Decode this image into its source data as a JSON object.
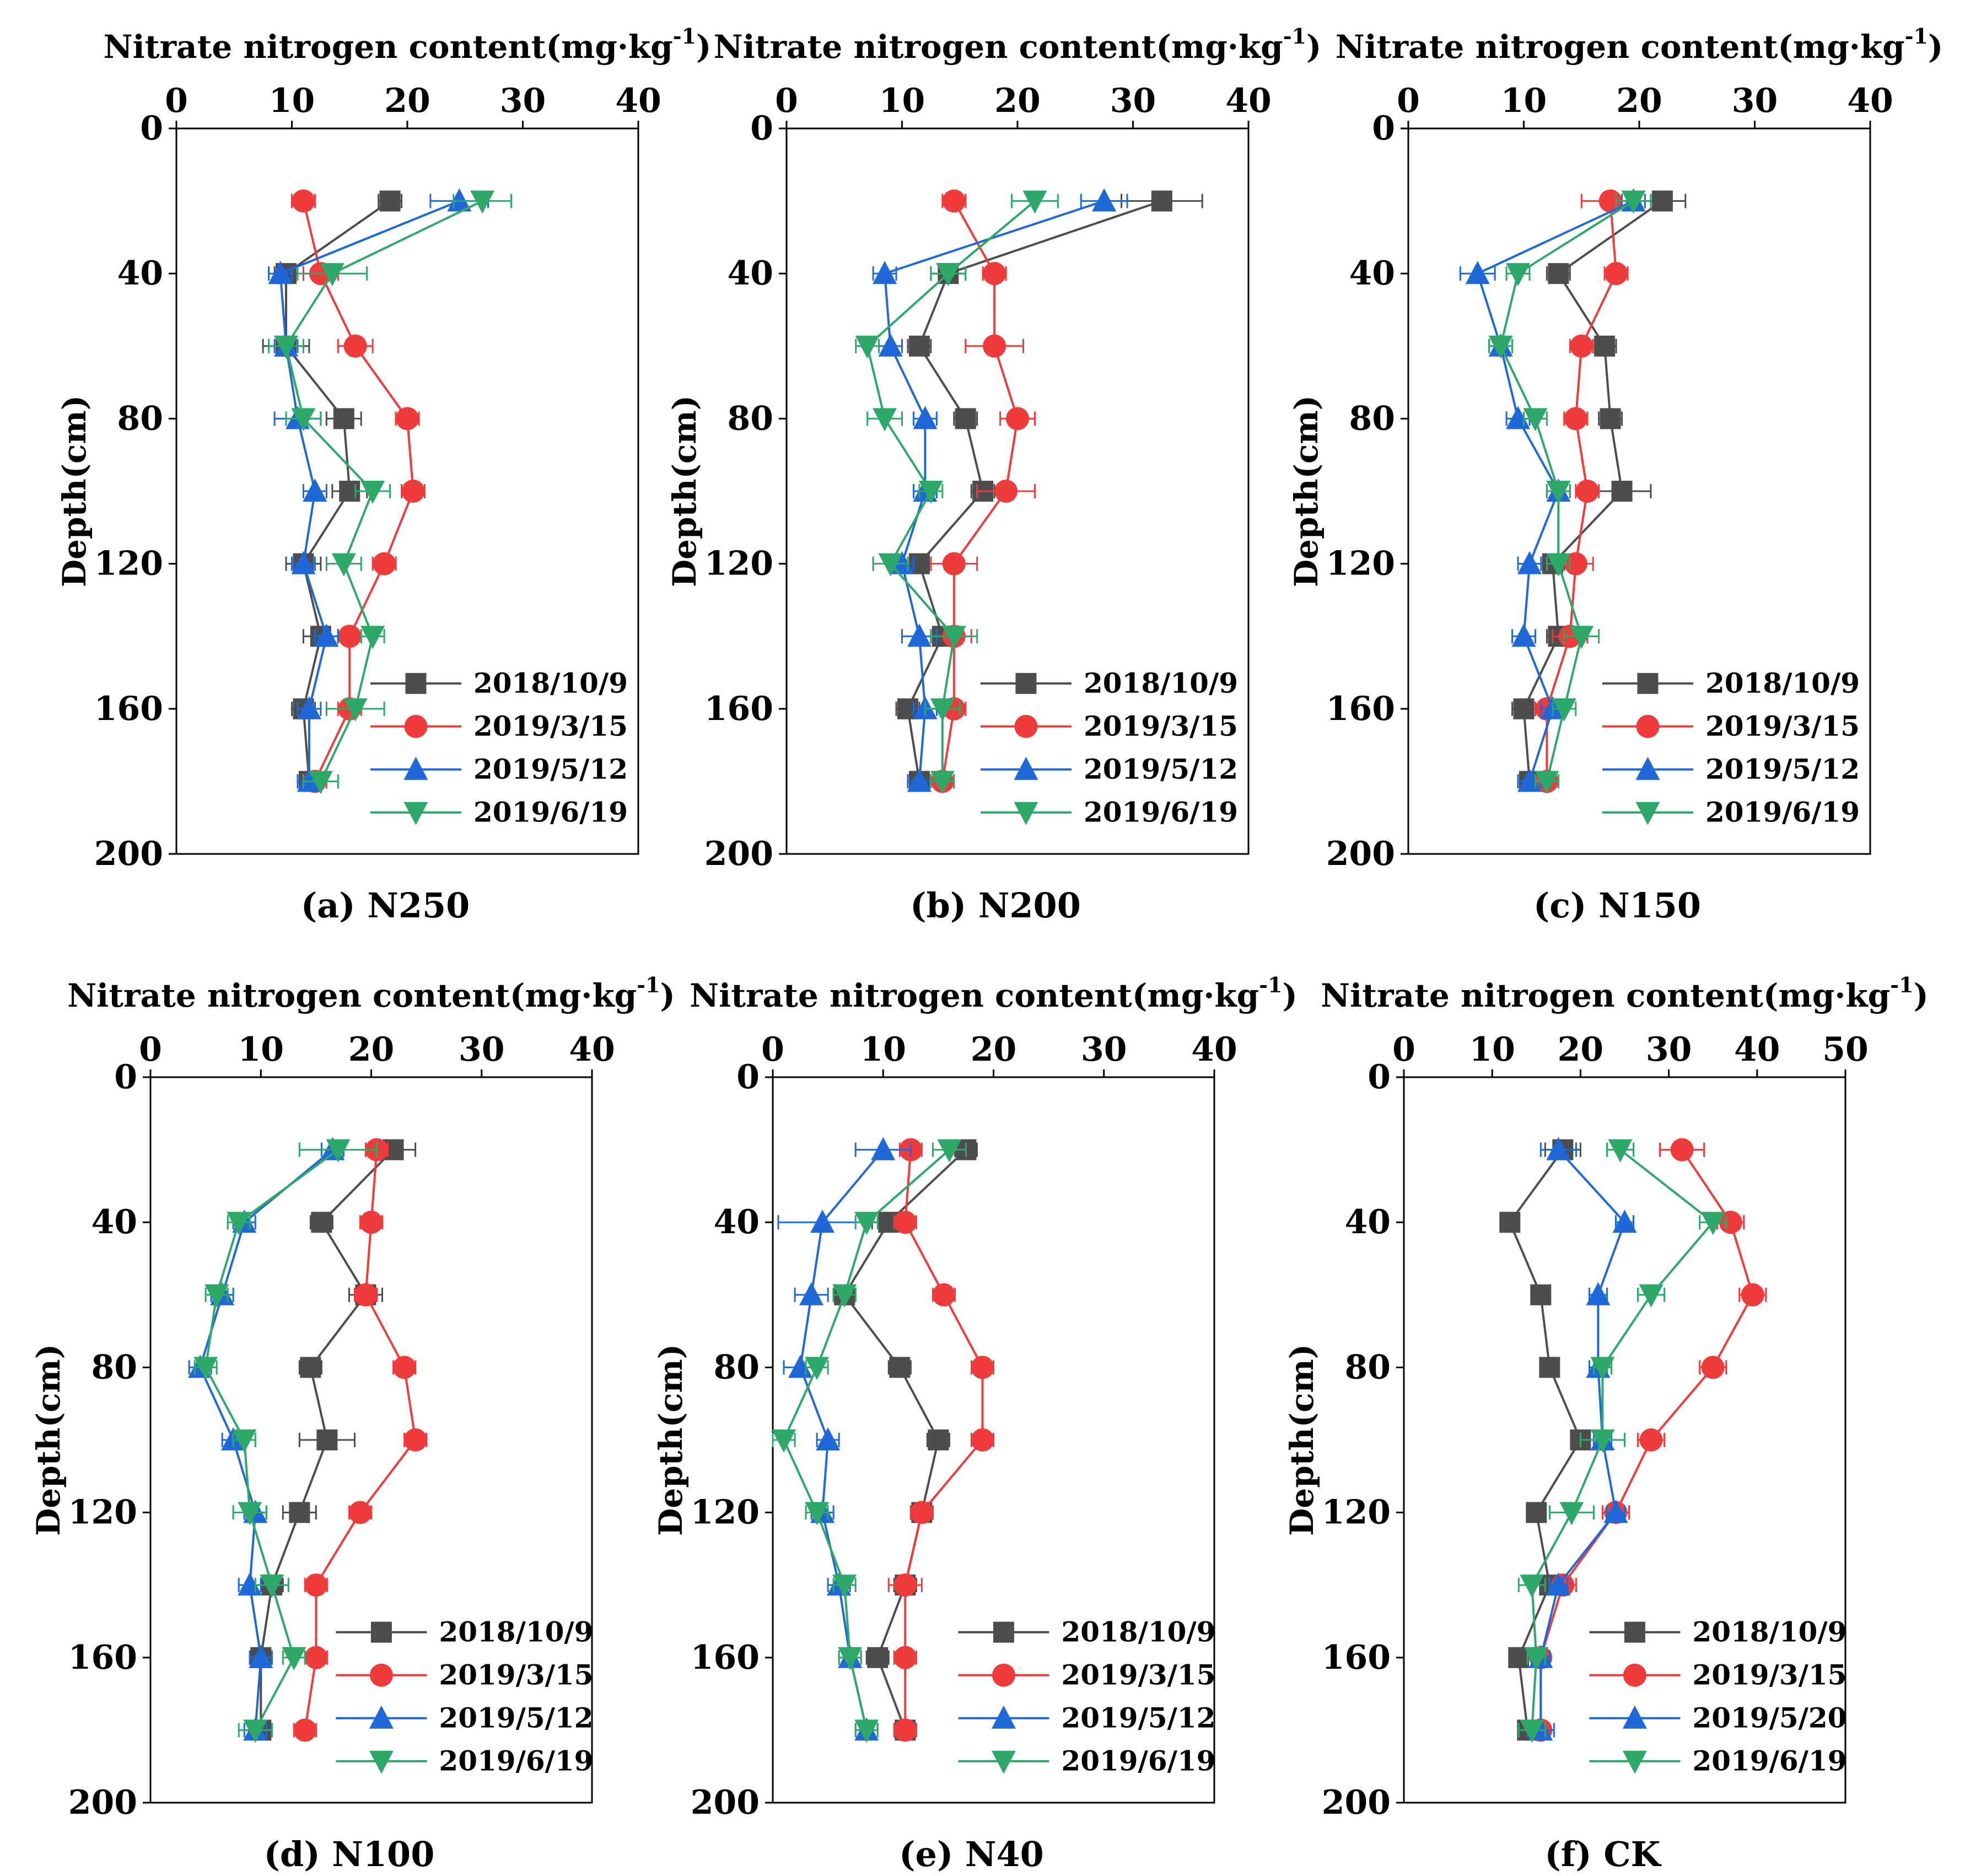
{
  "colors": {
    "series": [
      "#4d4d4d",
      "#ef3b3b",
      "#1f68d8",
      "#2ea868"
    ],
    "axis": "#000000"
  },
  "markers": [
    "square",
    "circle",
    "triangle-up",
    "triangle-down"
  ],
  "chart_data": [
    {
      "type": "line",
      "caption": "(a) N250",
      "xlabel": "Nitrate nitrogen content(mg·kg",
      "xlabel_sup": "-1",
      "xlabel_tail": ")",
      "ylabel": "Depth(cm)",
      "xlim": [
        0,
        40
      ],
      "ylim": [
        0,
        200
      ],
      "x_ticks": [
        "0",
        "10",
        "20",
        "30",
        "40"
      ],
      "y_ticks": [
        "0",
        "40",
        "80",
        "120",
        "160",
        "200"
      ],
      "legend_position": "bottom-right",
      "depth": [
        20,
        40,
        60,
        80,
        100,
        120,
        140,
        160,
        180
      ],
      "series": [
        {
          "name": "2018/10/9",
          "values": [
            18.5,
            9.5,
            9.5,
            14.5,
            15,
            11,
            12.5,
            11,
            11.5
          ],
          "errors": [
            1,
            1,
            2,
            1.5,
            1.5,
            1.5,
            1.5,
            1,
            1
          ]
        },
        {
          "name": "2019/3/15",
          "values": [
            11,
            12.5,
            15.5,
            20,
            20.5,
            18,
            15,
            15,
            12
          ],
          "errors": [
            1,
            1.5,
            1.5,
            1,
            1,
            1,
            1,
            1,
            1
          ]
        },
        {
          "name": "2019/5/12",
          "values": [
            24.5,
            9,
            9.5,
            10.5,
            12,
            11,
            13,
            11.5,
            11.5
          ],
          "errors": [
            2.5,
            1,
            1,
            2,
            1,
            1,
            1,
            1,
            1
          ]
        },
        {
          "name": "2019/6/19",
          "values": [
            26.5,
            13.5,
            9.5,
            11,
            17,
            14.5,
            17,
            15.5,
            12.5
          ],
          "errors": [
            2.5,
            3,
            1.5,
            1.5,
            1.5,
            1.5,
            1,
            2.5,
            1.5
          ]
        }
      ]
    },
    {
      "type": "line",
      "caption": "(b) N200",
      "xlabel": "Nitrate nitrogen content(mg·kg",
      "xlabel_sup": "-1",
      "xlabel_tail": ")",
      "ylabel": "Depth(cm)",
      "xlim": [
        0,
        40
      ],
      "ylim": [
        0,
        200
      ],
      "x_ticks": [
        "0",
        "10",
        "20",
        "30",
        "40"
      ],
      "y_ticks": [
        "0",
        "40",
        "80",
        "120",
        "160",
        "200"
      ],
      "legend_position": "bottom-right",
      "depth": [
        20,
        40,
        60,
        80,
        100,
        120,
        140,
        160,
        180
      ],
      "series": [
        {
          "name": "2018/10/9",
          "values": [
            32.5,
            14,
            11.5,
            15.5,
            17,
            11.5,
            13.5,
            10.5,
            11.5
          ],
          "errors": [
            3.5,
            1.5,
            1,
            1,
            1,
            1,
            1,
            1,
            1
          ]
        },
        {
          "name": "2019/3/15",
          "values": [
            14.5,
            18,
            18,
            20,
            19,
            14.5,
            14.5,
            14.5,
            13.5
          ],
          "errors": [
            1,
            1,
            2.5,
            1.5,
            2.5,
            2,
            1.5,
            1,
            1
          ]
        },
        {
          "name": "2019/5/12",
          "values": [
            27.5,
            8.5,
            9,
            12,
            12,
            10,
            11.5,
            12,
            11.5
          ],
          "errors": [
            2,
            1,
            1,
            1,
            1,
            1,
            1.5,
            1,
            1
          ]
        },
        {
          "name": "2019/6/19",
          "values": [
            21.5,
            14,
            7,
            8.5,
            12.5,
            9,
            14.5,
            13.5,
            13.5
          ],
          "errors": [
            2,
            1.5,
            1,
            1.5,
            1,
            1.5,
            2,
            1.5,
            1
          ]
        }
      ]
    },
    {
      "type": "line",
      "caption": "(c) N150",
      "xlabel": "Nitrate nitrogen content(mg·kg",
      "xlabel_sup": "-1",
      "xlabel_tail": ")",
      "ylabel": "Depth(cm)",
      "xlim": [
        0,
        40
      ],
      "ylim": [
        0,
        200
      ],
      "x_ticks": [
        "0",
        "10",
        "20",
        "30",
        "40"
      ],
      "y_ticks": [
        "0",
        "40",
        "80",
        "120",
        "160",
        "200"
      ],
      "legend_position": "bottom-right",
      "depth": [
        20,
        40,
        60,
        80,
        100,
        120,
        140,
        160,
        180
      ],
      "series": [
        {
          "name": "2018/10/9",
          "values": [
            22,
            13,
            17,
            17.5,
            18.5,
            12.5,
            13,
            10,
            10.5
          ],
          "errors": [
            2,
            1,
            1,
            1,
            2.5,
            1,
            1,
            1,
            1
          ]
        },
        {
          "name": "2019/3/15",
          "values": [
            17.5,
            18,
            15,
            14.5,
            15.5,
            14.5,
            14,
            12,
            12
          ],
          "errors": [
            2.5,
            1,
            1,
            1,
            1,
            1.5,
            1.5,
            1,
            1
          ]
        },
        {
          "name": "2019/5/12",
          "values": [
            19.5,
            6,
            8,
            9.5,
            13,
            10.5,
            10,
            12.5,
            10.5
          ],
          "errors": [
            1,
            1.5,
            1,
            1,
            1,
            1,
            1,
            1,
            1
          ]
        },
        {
          "name": "2019/6/19",
          "values": [
            19.5,
            9.5,
            8,
            11,
            13,
            13,
            15,
            13.5,
            12
          ],
          "errors": [
            1.5,
            1,
            1,
            1,
            1,
            1,
            1.5,
            1,
            1
          ]
        }
      ]
    },
    {
      "type": "line",
      "caption": "(d) N100",
      "xlabel": "Nitrate nitrogen content(mg·kg",
      "xlabel_sup": "-1",
      "xlabel_tail": ")",
      "ylabel": "Depth(cm)",
      "xlim": [
        0,
        40
      ],
      "ylim": [
        0,
        200
      ],
      "x_ticks": [
        "0",
        "10",
        "20",
        "30",
        "40"
      ],
      "y_ticks": [
        "0",
        "40",
        "80",
        "120",
        "160",
        "200"
      ],
      "legend_position": "bottom-right",
      "depth": [
        20,
        40,
        60,
        80,
        100,
        120,
        140,
        160,
        180
      ],
      "series": [
        {
          "name": "2018/10/9",
          "values": [
            22,
            15.5,
            19.5,
            14.5,
            16,
            13.5,
            11,
            10,
            10
          ],
          "errors": [
            2,
            1,
            1.5,
            1,
            2.5,
            1.5,
            1,
            1,
            1
          ]
        },
        {
          "name": "2019/3/15",
          "values": [
            20.5,
            20,
            19.5,
            23,
            24,
            19,
            15,
            15,
            14
          ],
          "errors": [
            1,
            1,
            1,
            1,
            1,
            1,
            1,
            1,
            1
          ]
        },
        {
          "name": "2019/5/12",
          "values": [
            16.5,
            8.5,
            6.5,
            4.5,
            7.5,
            9.5,
            9,
            10,
            9.5
          ],
          "errors": [
            1,
            1,
            1,
            1,
            1,
            1,
            1,
            1,
            1
          ]
        },
        {
          "name": "2019/6/19",
          "values": [
            17,
            8,
            6,
            5,
            8.5,
            9,
            11,
            13,
            9.5
          ],
          "errors": [
            3.5,
            1,
            1,
            1,
            1,
            1.5,
            1.5,
            1,
            1.5
          ]
        }
      ]
    },
    {
      "type": "line",
      "caption": "(e) N40",
      "xlabel": "Nitrate nitrogen content(mg·kg",
      "xlabel_sup": "-1",
      "xlabel_tail": ")",
      "ylabel": "Depth(cm)",
      "xlim": [
        0,
        40
      ],
      "ylim": [
        0,
        200
      ],
      "x_ticks": [
        "0",
        "10",
        "20",
        "30",
        "40"
      ],
      "y_ticks": [
        "0",
        "40",
        "80",
        "120",
        "160",
        "200"
      ],
      "legend_position": "bottom-right",
      "depth": [
        20,
        40,
        60,
        80,
        100,
        120,
        140,
        160,
        180
      ],
      "series": [
        {
          "name": "2018/10/9",
          "values": [
            17.5,
            10.5,
            6.5,
            11.5,
            15,
            13.5,
            12,
            9.5,
            12
          ],
          "errors": [
            1,
            1.5,
            1,
            1,
            1,
            1,
            1,
            1,
            1
          ]
        },
        {
          "name": "2019/3/15",
          "values": [
            12.5,
            12,
            15.5,
            19,
            19,
            13.5,
            12,
            12,
            12
          ],
          "errors": [
            1,
            1,
            1,
            1,
            1,
            1,
            1.5,
            1,
            1
          ]
        },
        {
          "name": "2019/5/12",
          "values": [
            10,
            4.5,
            3.5,
            2.5,
            5,
            4.5,
            6,
            7,
            8.5
          ],
          "errors": [
            2.5,
            4,
            1.5,
            1.5,
            1,
            1,
            1,
            1,
            1
          ]
        },
        {
          "name": "2019/6/19",
          "values": [
            16,
            8.5,
            6.5,
            4,
            1,
            4,
            6.5,
            7,
            8.5
          ],
          "errors": [
            1.5,
            1,
            1,
            1,
            1,
            1,
            1,
            1,
            1
          ]
        }
      ]
    },
    {
      "type": "line",
      "caption": "(f) CK",
      "xlabel": "Nitrate nitrogen content(mg·kg",
      "xlabel_sup": "-1",
      "xlabel_tail": ")",
      "ylabel": "Depth(cm)",
      "xlim": [
        0,
        50
      ],
      "ylim": [
        0,
        200
      ],
      "x_ticks": [
        "0",
        "10",
        "20",
        "30",
        "40",
        "50"
      ],
      "y_ticks": [
        "0",
        "40",
        "80",
        "120",
        "160",
        "200"
      ],
      "legend_position": "bottom-right",
      "depth": [
        20,
        40,
        60,
        80,
        100,
        120,
        140,
        160,
        180
      ],
      "series": [
        {
          "name": "2018/10/9",
          "values": [
            18,
            12,
            15.5,
            16.5,
            20,
            15,
            16.5,
            13,
            14
          ],
          "errors": [
            2,
            1,
            1,
            1,
            1,
            1,
            1,
            1,
            1
          ]
        },
        {
          "name": "2019/3/15",
          "values": [
            31.5,
            37,
            39.5,
            35,
            28,
            24,
            18,
            15.5,
            15.5
          ],
          "errors": [
            2.5,
            1.5,
            1.5,
            1.5,
            1.5,
            1.5,
            1.5,
            1,
            1
          ]
        },
        {
          "name": "2019/5/20",
          "values": [
            17.5,
            25,
            22,
            22,
            22.5,
            24,
            17.5,
            15.5,
            15.5
          ],
          "errors": [
            2,
            1,
            1,
            1,
            1,
            1,
            1,
            1,
            1.5
          ]
        },
        {
          "name": "2019/6/19",
          "values": [
            24.5,
            35,
            28,
            22.5,
            22.5,
            19,
            14.5,
            15,
            14.5
          ],
          "errors": [
            1.5,
            1.5,
            1.5,
            1,
            2.5,
            2.5,
            1.5,
            1,
            1.5
          ]
        }
      ]
    }
  ]
}
